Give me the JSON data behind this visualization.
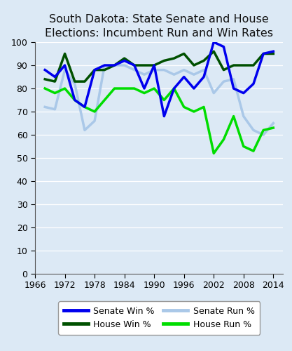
{
  "title": "South Dakota: State Senate and House\nElections: Incumbent Run and Win Rates",
  "title_fontsize": 11.5,
  "xlim": [
    1966,
    2016
  ],
  "ylim": [
    0,
    100
  ],
  "yticks": [
    0,
    10,
    20,
    30,
    40,
    50,
    60,
    70,
    80,
    90,
    100
  ],
  "xticks": [
    1966,
    1972,
    1978,
    1984,
    1990,
    1996,
    2002,
    2008,
    2014
  ],
  "background_color": "#dce9f5",
  "years": [
    1968,
    1970,
    1972,
    1974,
    1976,
    1978,
    1980,
    1982,
    1984,
    1986,
    1988,
    1990,
    1992,
    1994,
    1996,
    1998,
    2000,
    2002,
    2004,
    2006,
    2008,
    2010,
    2012,
    2014
  ],
  "senate_win": [
    88,
    85,
    90,
    75,
    72,
    88,
    90,
    90,
    92,
    90,
    80,
    90,
    68,
    80,
    85,
    80,
    85,
    100,
    98,
    80,
    78,
    82,
    95,
    96
  ],
  "senate_run": [
    72,
    71,
    88,
    82,
    62,
    66,
    90,
    90,
    90,
    88,
    86,
    88,
    88,
    86,
    88,
    86,
    88,
    78,
    83,
    84,
    68,
    62,
    60,
    65
  ],
  "house_win": [
    84,
    83,
    95,
    83,
    83,
    88,
    88,
    90,
    93,
    90,
    90,
    90,
    92,
    93,
    95,
    90,
    92,
    96,
    88,
    90,
    90,
    90,
    95,
    95
  ],
  "house_run": [
    80,
    78,
    80,
    75,
    72,
    70,
    75,
    80,
    80,
    80,
    78,
    80,
    75,
    80,
    72,
    70,
    72,
    52,
    58,
    68,
    55,
    53,
    62,
    63
  ],
  "senate_win_color": "#0000ee",
  "senate_run_color": "#aac8e8",
  "house_win_color": "#005000",
  "house_run_color": "#00dd00",
  "senate_win_lw": 2.5,
  "senate_run_lw": 2.5,
  "house_win_lw": 2.5,
  "house_run_lw": 2.5,
  "legend_fontsize": 9,
  "tick_labelsize": 9
}
